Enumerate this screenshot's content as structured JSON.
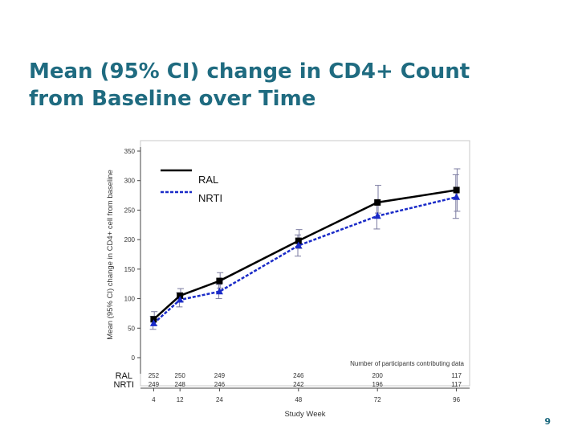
{
  "slide": {
    "title_line1": "Mean (95% CI) change in CD4+ Count",
    "title_line2": "from Baseline over Time",
    "page_number": "9"
  },
  "chart_data": {
    "type": "line",
    "ylabel": "Mean (95% CI) change in CD4+ cell from baseline",
    "xlabel": "Study Week",
    "ylim": [
      0,
      350
    ],
    "yticks": [
      0,
      50,
      100,
      150,
      200,
      250,
      300,
      350
    ],
    "x": [
      4,
      12,
      24,
      48,
      72,
      96
    ],
    "legend_position": "top-left",
    "participants_label": "Number of participants contributing data",
    "series": [
      {
        "name": "RAL",
        "row_label": "RAL",
        "color": "#000000",
        "values": [
          65,
          105,
          130,
          198,
          263,
          284
        ],
        "ci_low": [
          55,
          95,
          118,
          185,
          245,
          248
        ],
        "ci_high": [
          78,
          117,
          144,
          217,
          292,
          320
        ],
        "participants": [
          "252",
          "250",
          "249",
          "246",
          "200",
          "117"
        ]
      },
      {
        "name": "NRTI",
        "row_label": "NRTI",
        "color": "#1a2bc8",
        "values": [
          58,
          98,
          112,
          190,
          240,
          272
        ],
        "ci_low": [
          48,
          86,
          100,
          172,
          218,
          236
        ],
        "ci_high": [
          70,
          110,
          124,
          208,
          262,
          310
        ],
        "participants": [
          "249",
          "248",
          "246",
          "242",
          "196",
          "117"
        ]
      }
    ]
  }
}
